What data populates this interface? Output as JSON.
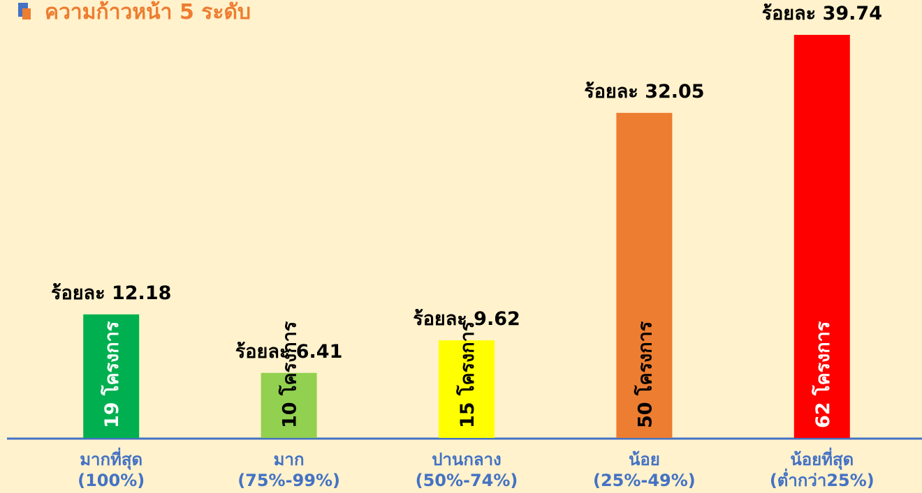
{
  "chart_data": {
    "type": "bar",
    "title": "ความก้าวหน้า 5 ระดับ",
    "categories": [
      "มากที่สุด\n(100%)",
      "มาก\n(75%-99%)",
      "ปานกลาง\n(50%-74%)",
      "น้อย\n(25%-49%)",
      "น้อยที่สุด\n(ต่ำกว่า25%)"
    ],
    "values": [
      12.18,
      6.41,
      9.62,
      32.05,
      39.74
    ],
    "value_labels": [
      "ร้อยละ 12.18",
      "ร้อยละ 6.41",
      "ร้อยละ 9.62",
      "ร้อยละ 32.05",
      "ร้อยละ 39.74"
    ],
    "count_labels": [
      "19 โครงการ",
      "10 โครงการ",
      "15 โครงการ",
      "50 โครงการ",
      "62 โครงการ"
    ],
    "colors": [
      "#00b050",
      "#92d050",
      "#ffff00",
      "#ed7d31",
      "#ff0000"
    ],
    "count_label_colors": [
      "#ffffff",
      "#000000",
      "#000000",
      "#000000",
      "#ffffff"
    ]
  }
}
